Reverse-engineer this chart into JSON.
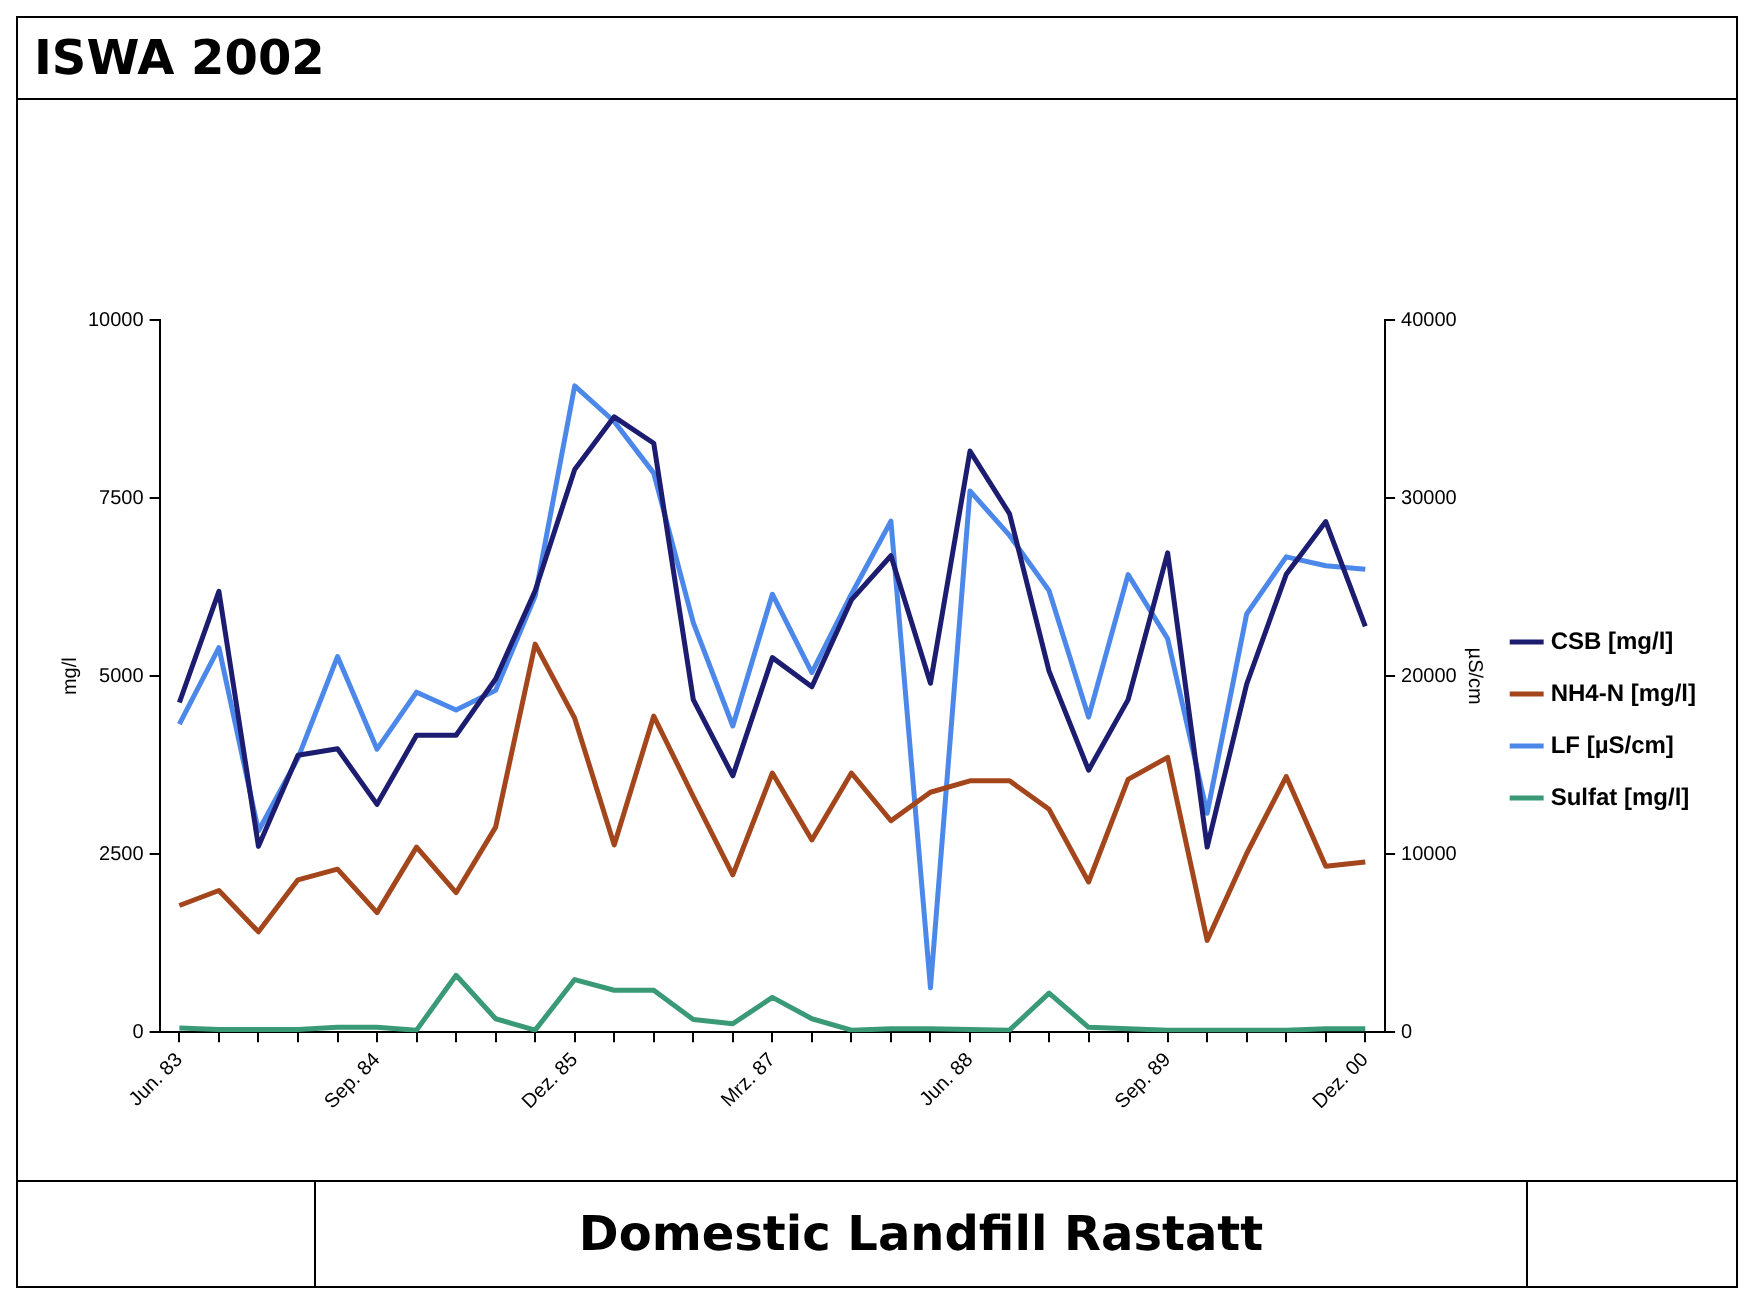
{
  "chart_data": {
    "type": "line",
    "title": "ISWA 2002",
    "subtitle": "Domestic Landfill Rastatt",
    "ylabel": "mg/l",
    "y2label": "µS/cm",
    "categories": [
      "Jun. 83",
      null,
      null,
      null,
      null,
      "Sep. 84",
      null,
      null,
      null,
      null,
      "Dez. 85",
      null,
      null,
      null,
      null,
      "Mrz. 87",
      null,
      null,
      null,
      null,
      "Jun. 88",
      null,
      null,
      null,
      null,
      "Sep. 89",
      null,
      null,
      null,
      null,
      "Dez. 00"
    ],
    "series": [
      {
        "name": "CSB [mg/l]",
        "color": "#1c1c70",
        "values": [
          4630,
          6190,
          2610,
          3890,
          3980,
          3200,
          4170,
          4170,
          4960,
          6200,
          7900,
          8640,
          8270,
          4670,
          3600,
          5260,
          4850,
          6070,
          6690,
          4900,
          8160,
          7280,
          5070,
          3680,
          4670,
          6730,
          2600,
          4890,
          6430,
          7170,
          5700
        ]
      },
      {
        "name": "NH4-N [mg/l]",
        "color": "#a4461c",
        "values": [
          1780,
          1990,
          1410,
          2140,
          2290,
          1680,
          2600,
          1960,
          2880,
          5450,
          4410,
          2630,
          4440,
          3310,
          2210,
          3640,
          2700,
          3640,
          2970,
          3370,
          3530,
          3530,
          3130,
          2110,
          3550,
          3860,
          1290,
          2510,
          3590,
          2330,
          2390
        ]
      },
      {
        "name": "LF [µS/cm]",
        "color": "#4c88ea",
        "axis": "y2",
        "values": [
          17300,
          21600,
          11300,
          15400,
          21100,
          15900,
          19100,
          18100,
          19200,
          24500,
          36300,
          34300,
          31400,
          23000,
          17200,
          24600,
          20200,
          24600,
          28700,
          2500,
          30400,
          27900,
          24800,
          17700,
          25700,
          22100,
          12300,
          23500,
          26700,
          26200,
          26000
        ]
      },
      {
        "name": "Sulfat [mg/l]",
        "color": "#3a9a78",
        "values": [
          60,
          40,
          40,
          40,
          70,
          70,
          30,
          800,
          190,
          30,
          740,
          590,
          590,
          180,
          120,
          490,
          190,
          30,
          50,
          50,
          40,
          30,
          550,
          70,
          50,
          30,
          30,
          30,
          30,
          50,
          50
        ]
      }
    ],
    "ylim": [
      0,
      10000
    ],
    "yticks": [
      0,
      2500,
      5000,
      7500,
      10000
    ],
    "y2lim": [
      0,
      40000
    ],
    "y2ticks": [
      0,
      10000,
      20000,
      30000,
      40000
    ],
    "grid": false,
    "legend": "right",
    "marker": "none",
    "line_style": "solid"
  }
}
